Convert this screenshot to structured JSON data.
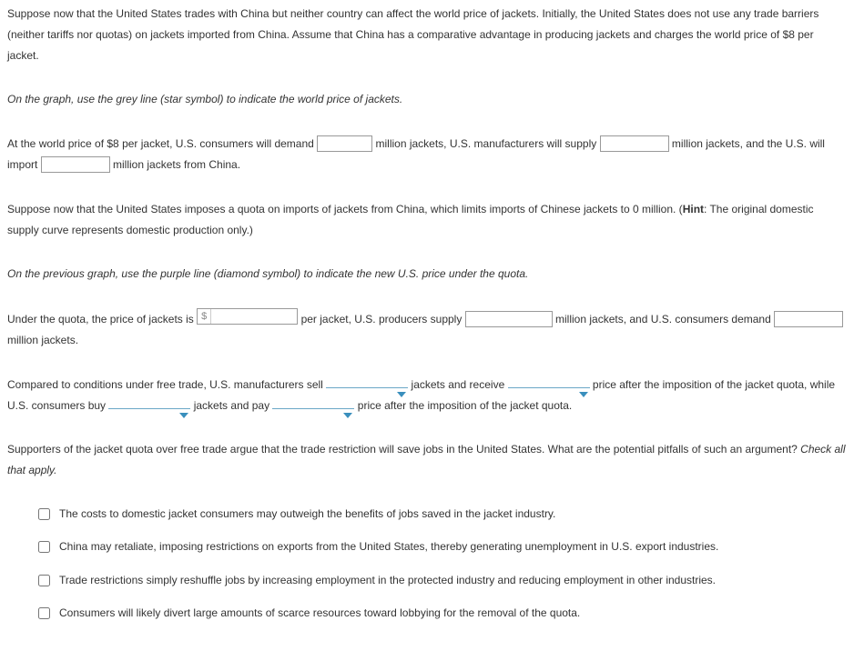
{
  "p1": "Suppose now that the United States trades with China but neither country can affect the world price of jackets. Initially, the United States does not use any trade barriers (neither tariffs nor quotas) on jackets imported from China. Assume that China has a comparative advantage in producing jackets and charges the world price of $8 per jacket.",
  "p2": "On the graph, use the grey line (star symbol) to indicate the world price of jackets.",
  "p3a": "At the world price of $8 per jacket, U.S. consumers will demand ",
  "p3b": " million jackets, U.S. manufacturers will supply ",
  "p3c": " million jackets, and the U.S. will import ",
  "p3d": " million jackets from China.",
  "p4a": "Suppose now that the United States imposes a quota on imports of jackets from China, which limits imports of Chinese jackets to 0 million. (",
  "p4hint": "Hint",
  "p4b": ": The original domestic supply curve represents domestic production only.)",
  "p5": "On the previous graph, use the purple line (diamond symbol) to indicate the new U.S. price under the quota.",
  "p6a": "Under the quota, the price of jackets is ",
  "p6b": " per jacket, U.S. producers supply ",
  "p6c": " million jackets, and U.S. consumers demand ",
  "p6d": " million jackets.",
  "currency_symbol": "$",
  "p7a": "Compared to conditions under free trade, U.S. manufacturers sell ",
  "p7b": " jackets and receive ",
  "p7c": " price after the imposition of the jacket quota, while U.S. consumers buy ",
  "p7d": " jackets and pay ",
  "p7e": " price after the imposition of the jacket quota.",
  "p8a": "Supporters of the jacket quota over free trade argue that the trade restriction will save jobs in the United States. What are the potential pitfalls of such an argument? ",
  "p8b": "Check all that apply.",
  "options": [
    "The costs to domestic jacket consumers may outweigh the benefits of jobs saved in the jacket industry.",
    "China may retaliate, imposing restrictions on exports from the United States, thereby generating unemployment in U.S. export industries.",
    "Trade restrictions simply reshuffle jobs by increasing employment in the protected industry and reducing employment in other industries.",
    "Consumers will likely divert large amounts of scarce resources toward lobbying for the removal of the quota."
  ]
}
